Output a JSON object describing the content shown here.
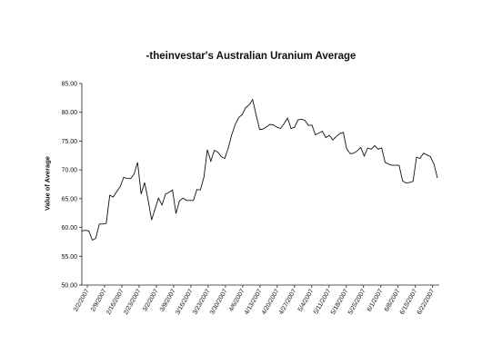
{
  "chart_data": {
    "type": "line",
    "title": "-theinvestar's Australian Uranium Average",
    "xlabel": "",
    "ylabel": "Value of Average",
    "ylim": [
      50,
      85
    ],
    "yticks": [
      "50.00",
      "55.00",
      "60.00",
      "65.00",
      "70.00",
      "75.00",
      "80.00",
      "85.00"
    ],
    "x_tick_labels": [
      "2/2/2007",
      "2/9/2007",
      "2/16/2007",
      "2/23/2007",
      "3/2/2007",
      "3/9/2007",
      "3/16/2007",
      "3/23/2007",
      "3/30/2007",
      "4/6/2007",
      "4/13/2007",
      "4/20/2007",
      "4/27/2007",
      "5/4/2007",
      "5/11/2007",
      "5/18/2007",
      "5/25/2007",
      "6/1/2007",
      "6/8/2007",
      "6/15/2007",
      "6/22/2007"
    ],
    "grid": false,
    "legend": "none",
    "series": [
      {
        "values": [
          59.4,
          59.5,
          59.4,
          57.8,
          58.1,
          60.6,
          60.6,
          60.7,
          65.6,
          65.3,
          66.2,
          67.1,
          68.7,
          68.5,
          68.5,
          69.3,
          71.3,
          65.8,
          67.8,
          64.8,
          61.3,
          63.2,
          65.1,
          63.9,
          65.8,
          66.1,
          66.5,
          62.4,
          64.6,
          65.1,
          64.7,
          64.7,
          64.7,
          66.6,
          66.5,
          68.7,
          73.5,
          71.5,
          73.4,
          73.1,
          72.3,
          72.0,
          73.8,
          76.1,
          77.9,
          79.1,
          79.6,
          80.8,
          81.3,
          82.2,
          79.5,
          77.0,
          77.1,
          77.5,
          77.9,
          77.8,
          77.4,
          77.2,
          78.0,
          79.0,
          77.2,
          77.4,
          78.7,
          78.8,
          78.6,
          77.7,
          77.8,
          76.1,
          76.4,
          76.7,
          75.6,
          76.0,
          75.2,
          75.8,
          76.3,
          76.5,
          73.6,
          72.8,
          72.9,
          73.3,
          73.9,
          72.4,
          73.8,
          73.6,
          74.2,
          73.6,
          73.8,
          71.3,
          71.0,
          70.8,
          70.8,
          70.8,
          68.1,
          67.7,
          67.8,
          68.0,
          72.2,
          72.0,
          72.9,
          72.6,
          72.3,
          71.0,
          68.6
        ]
      }
    ]
  }
}
